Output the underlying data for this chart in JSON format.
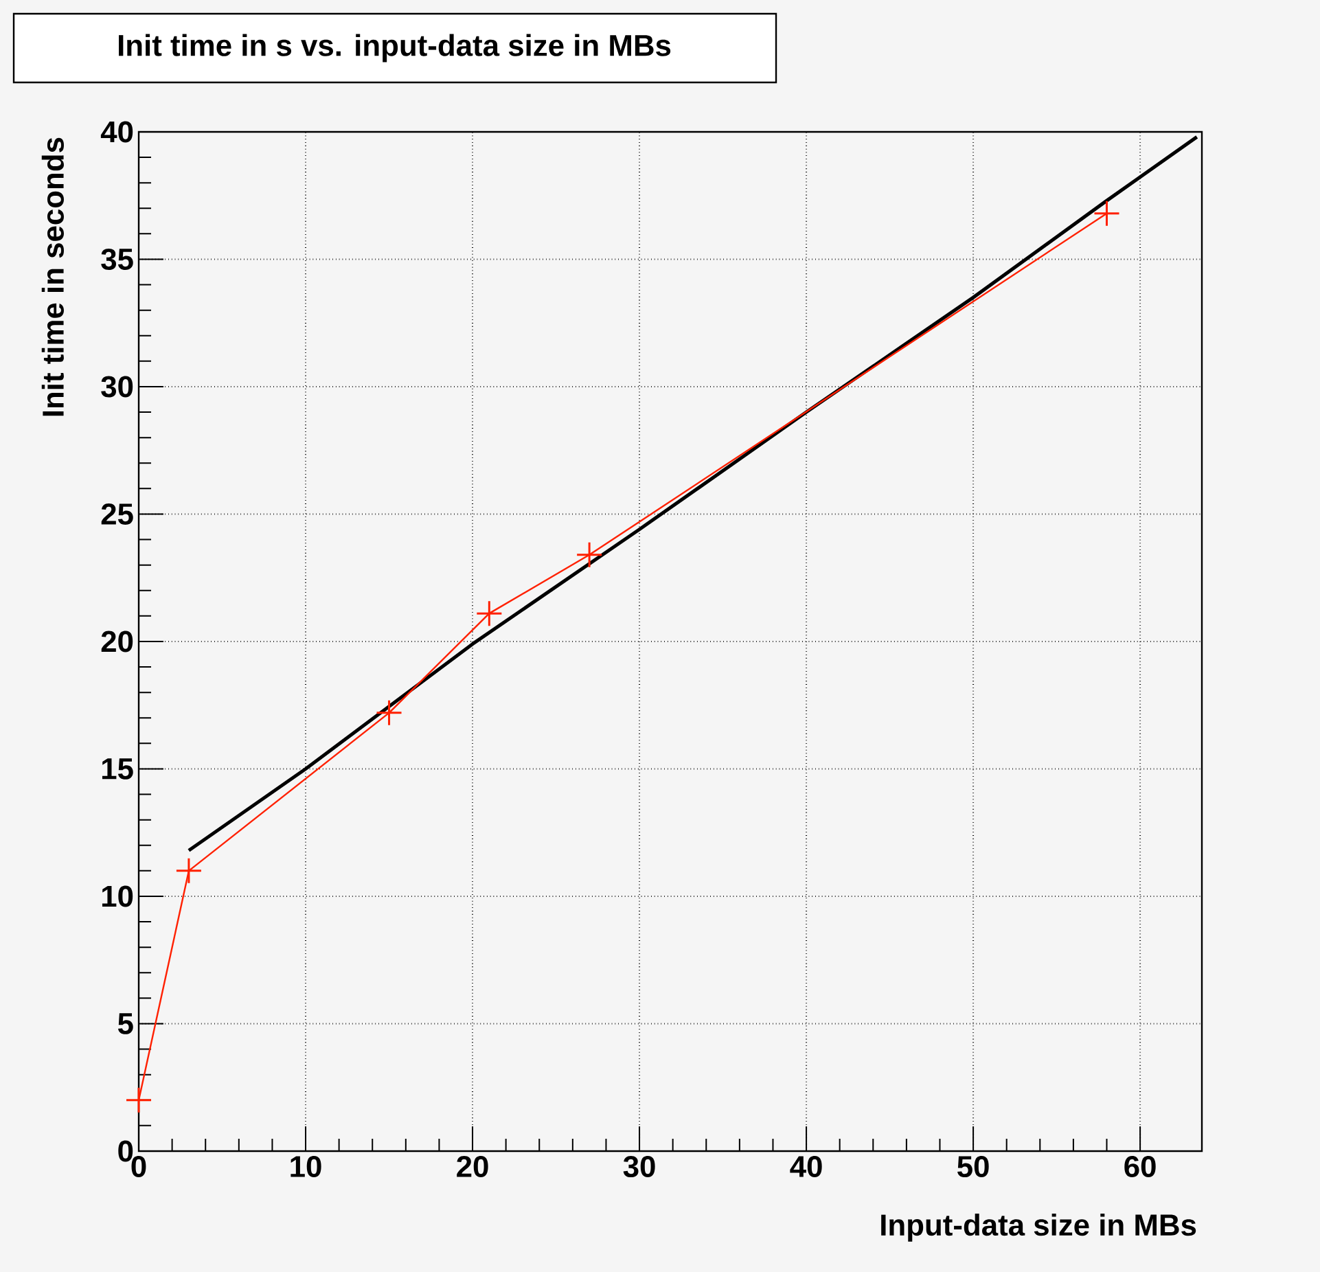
{
  "chart_data": {
    "type": "line",
    "title": "Init time in s vs. input-data size in MBs",
    "xlabel": "Input-data size in MBs",
    "ylabel": "Init time in seconds",
    "xlim": [
      0,
      63.7
    ],
    "ylim": [
      0,
      40
    ],
    "xticks": [
      0,
      10,
      20,
      30,
      40,
      50,
      60
    ],
    "yticks": [
      0,
      5,
      10,
      15,
      20,
      25,
      30,
      35,
      40
    ],
    "grid": true,
    "series": [
      {
        "color": "#000000",
        "marker": "none",
        "x": [
          3,
          10,
          20,
          30,
          40,
          50,
          58,
          63.4
        ],
        "values": [
          11.8,
          15.0,
          19.9,
          24.4,
          29.0,
          33.5,
          37.3,
          39.8
        ]
      },
      {
        "color": "#ff2000",
        "marker": "cross",
        "x": [
          0,
          3,
          15,
          21,
          27,
          58
        ],
        "values": [
          2,
          11,
          17.2,
          21.1,
          23.4,
          36.8
        ]
      }
    ]
  }
}
